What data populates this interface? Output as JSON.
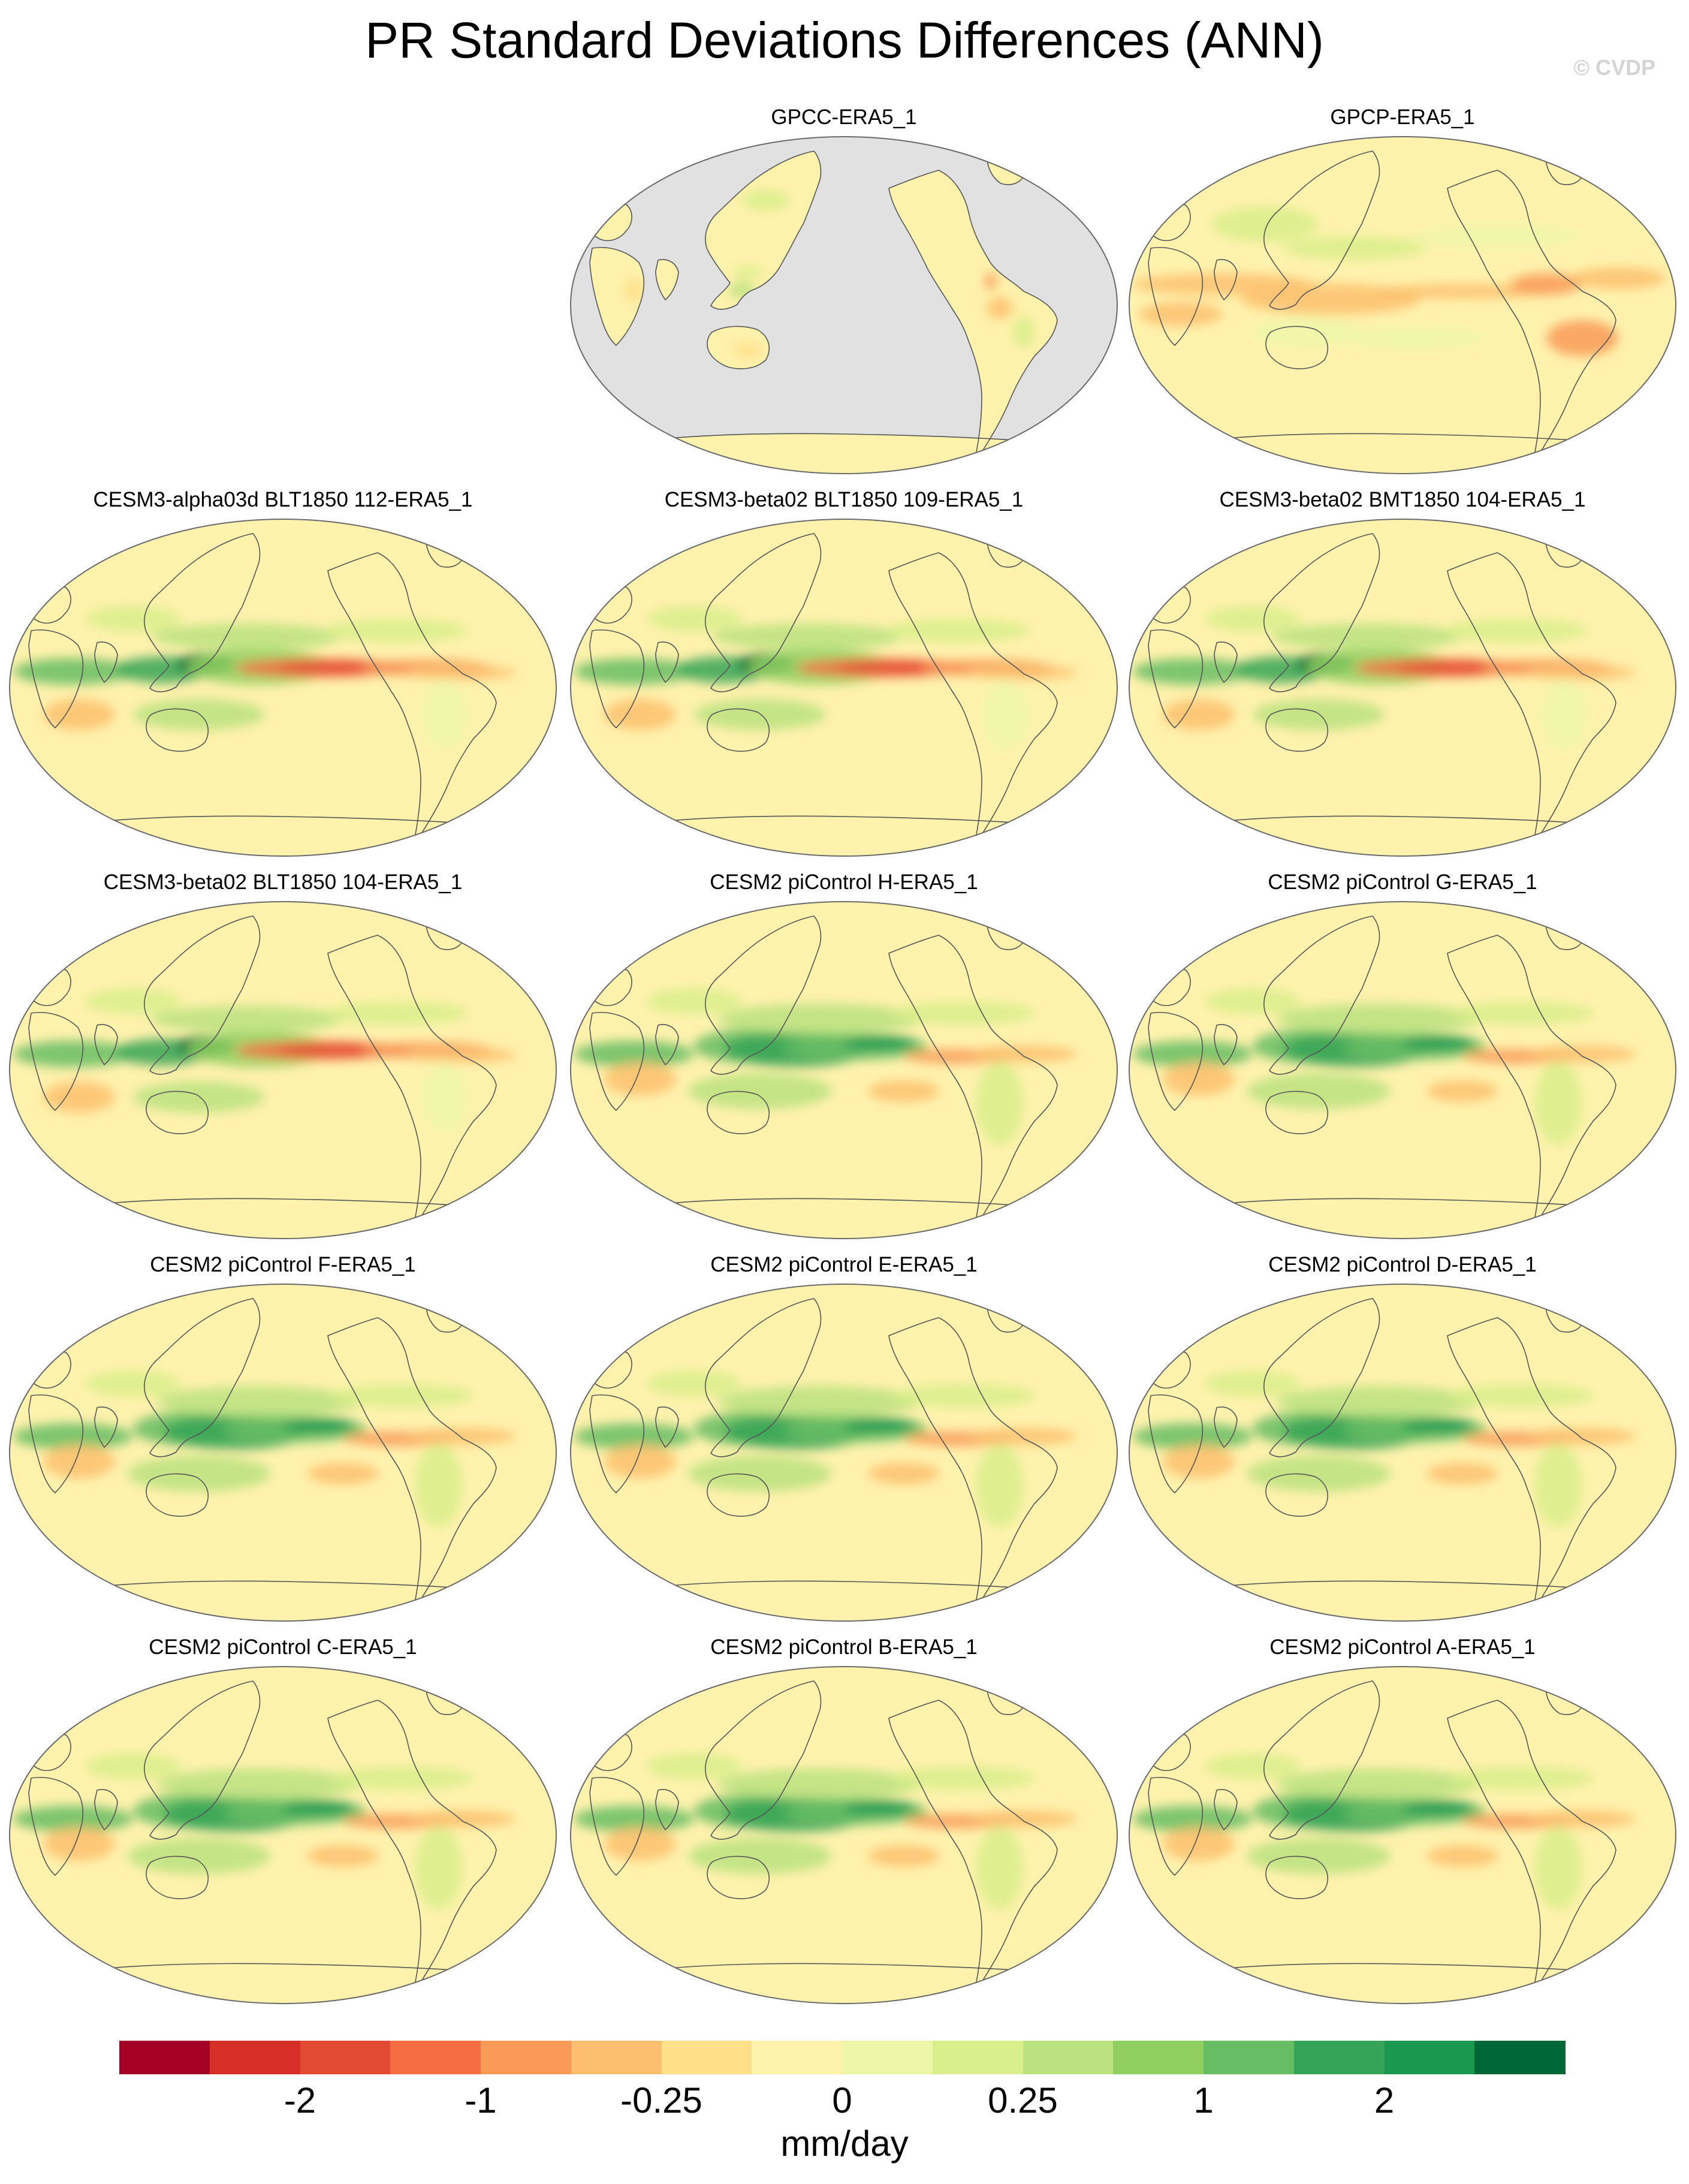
{
  "title": "PR Standard Deviations Differences (ANN)",
  "watermark": "© CVDP",
  "panels": [
    {
      "label": "GPCC-ERA5_1",
      "variant": "land-only"
    },
    {
      "label": "GPCP-ERA5_1",
      "variant": "obs"
    },
    {
      "label": "CESM3-alpha03d BLT1850 112-ERA5_1",
      "variant": "cesm3"
    },
    {
      "label": "CESM3-beta02 BLT1850 109-ERA5_1",
      "variant": "cesm3"
    },
    {
      "label": "CESM3-beta02 BMT1850 104-ERA5_1",
      "variant": "cesm3"
    },
    {
      "label": "CESM3-beta02 BLT1850 104-ERA5_1",
      "variant": "cesm3"
    },
    {
      "label": "CESM2 piControl H-ERA5_1",
      "variant": "cesm2"
    },
    {
      "label": "CESM2 piControl G-ERA5_1",
      "variant": "cesm2"
    },
    {
      "label": "CESM2 piControl F-ERA5_1",
      "variant": "cesm2"
    },
    {
      "label": "CESM2 piControl E-ERA5_1",
      "variant": "cesm2"
    },
    {
      "label": "CESM2 piControl D-ERA5_1",
      "variant": "cesm2"
    },
    {
      "label": "CESM2 piControl C-ERA5_1",
      "variant": "cesm2"
    },
    {
      "label": "CESM2 piControl B-ERA5_1",
      "variant": "cesm2"
    },
    {
      "label": "CESM2 piControl A-ERA5_1",
      "variant": "cesm2"
    }
  ],
  "colorbar": {
    "colors": [
      "#a50026",
      "#d62f27",
      "#e34a33",
      "#f46d43",
      "#f99a58",
      "#fdbf6f",
      "#fee08b",
      "#fff2ad",
      "#eef7a9",
      "#d9ef8b",
      "#bae27f",
      "#91cf60",
      "#66bd63",
      "#35a456",
      "#1a9850",
      "#006837"
    ],
    "tick_labels": [
      "-2",
      "-1",
      "-0.25",
      "0",
      "0.25",
      "1",
      "2"
    ],
    "units": "mm/day"
  }
}
